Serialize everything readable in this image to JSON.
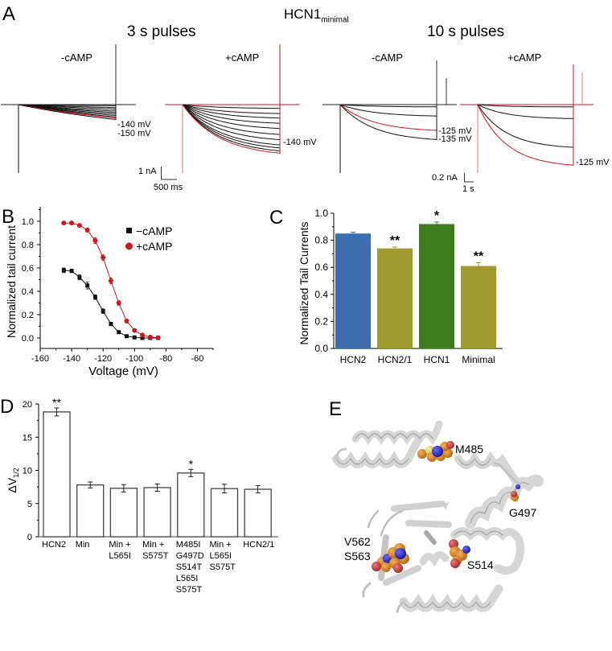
{
  "figure_title": {
    "main": "HCN1",
    "subscript": "minimal"
  },
  "panel_letters": {
    "a": "A",
    "b": "B",
    "c": "C",
    "d": "D",
    "e": "E"
  },
  "colors": {
    "trace_black": "#111111",
    "trace_red": "#d8131b",
    "trace_red_light": "#e88a8a",
    "minus_camp": "#111111",
    "plus_camp": "#d0161c",
    "hcn2_blue": "#3c6daf",
    "olive": "#a19a2c",
    "hcn1_green": "#3e7d1e",
    "protein_gray": "#d8d8d8",
    "atom_orange": "#d97f1a",
    "atom_blue": "#2424c8",
    "atom_red": "#c8393b"
  },
  "panel_a": {
    "groups": [
      {
        "title": "3 s pulses",
        "traces": [
          {
            "label": "-cAMP",
            "voltage_labels": [
              "-140 mV",
              "-150 mV"
            ],
            "highlight": "-140 mV"
          },
          {
            "label": "+cAMP",
            "voltage_labels": [
              "-140 mV"
            ],
            "highlight": "-140 mV"
          }
        ],
        "scale_bar": {
          "current": "1 nA",
          "time": "500 ms"
        }
      },
      {
        "title": "10 s pulses",
        "traces": [
          {
            "label": "-cAMP",
            "voltage_labels": [
              "-125 mV",
              "-135 mV"
            ],
            "highlight": "-125 mV"
          },
          {
            "label": "+cAMP",
            "voltage_labels": [
              "-125 mV"
            ],
            "highlight": "-125 mV"
          }
        ],
        "scale_bar": {
          "current": "0.2 nA",
          "time": "1 s"
        }
      }
    ]
  },
  "chart_data": [
    {
      "panel": "B",
      "type": "scatter",
      "title": "",
      "xlabel": "Voltage (mV)",
      "ylabel": "Normalized tail current",
      "xlim": [
        -160,
        -50
      ],
      "ylim": [
        -0.1,
        1.05
      ],
      "xticks": [
        -160,
        -140,
        -120,
        -100,
        -80,
        -60
      ],
      "xtick_labels": [
        "-160",
        "-140",
        "-120",
        "-100",
        "-80",
        "-60"
      ],
      "yticks": [
        0.0,
        0.2,
        0.4,
        0.6,
        0.8,
        1.0
      ],
      "ytick_labels": [
        "0.0",
        "0.2",
        "0.4",
        "0.6",
        "0.8",
        "1.0"
      ],
      "legend": "top-right",
      "fit": "Boltzmann",
      "x": [
        -145,
        -140,
        -135,
        -130,
        -125,
        -120,
        -115,
        -110,
        -105,
        -100,
        -95,
        -90,
        -85
      ],
      "series": [
        {
          "name": "−cAMP",
          "marker": "square",
          "color": "#111111",
          "values": [
            0.58,
            0.575,
            0.52,
            0.45,
            0.35,
            0.23,
            0.12,
            0.05,
            0.015,
            0.005,
            0.0,
            0.0,
            0.0
          ],
          "errors": [
            0.02,
            0.015,
            0.02,
            0.03,
            0.02,
            0.02,
            0.015,
            0.008,
            0.005,
            0.003,
            0.003,
            0.003,
            0.003
          ]
        },
        {
          "name": "+cAMP",
          "marker": "circle",
          "color": "#d0161c",
          "values": [
            0.985,
            0.985,
            0.965,
            0.925,
            0.835,
            0.69,
            0.49,
            0.3,
            0.145,
            0.065,
            0.025,
            0.008,
            0.003
          ],
          "errors": [
            0.01,
            0.008,
            0.01,
            0.015,
            0.025,
            0.025,
            0.025,
            0.02,
            0.015,
            0.008,
            0.005,
            0.004,
            0.003
          ]
        }
      ]
    },
    {
      "panel": "C",
      "type": "bar",
      "title": "",
      "xlabel": "",
      "ylabel": "Normalized Tail Currents",
      "ylim": [
        0.0,
        1.0
      ],
      "yticks": [
        0.0,
        0.2,
        0.4,
        0.6,
        0.8,
        1.0
      ],
      "ytick_labels": [
        "0.0",
        "0.2",
        "0.4",
        "0.6",
        "0.8",
        "1.0"
      ],
      "categories": [
        "HCN2",
        "HCN2/1",
        "HCN1",
        "Minimal"
      ],
      "values": [
        0.85,
        0.74,
        0.92,
        0.61
      ],
      "errors": [
        0.01,
        0.01,
        0.015,
        0.025
      ],
      "significance": [
        "",
        "**",
        "*",
        "**"
      ],
      "bar_colors": [
        "#3c6daf",
        "#a19a2c",
        "#3e7d1e",
        "#a19a2c"
      ]
    },
    {
      "panel": "D",
      "type": "bar",
      "title": "",
      "xlabel": "",
      "ylabel": "ΔV1/2",
      "ylabel_main": "ΔV",
      "ylabel_sub": "1/2",
      "ylim": [
        0,
        20
      ],
      "yticks": [
        0,
        5,
        10,
        15,
        20
      ],
      "ytick_labels": [
        "0",
        "5",
        "10",
        "15",
        "20"
      ],
      "categories": [
        [
          "HCN2"
        ],
        [
          "Min"
        ],
        [
          "Min +",
          "L565I"
        ],
        [
          "Min +",
          "S575T"
        ],
        [
          "M485I",
          "G497D",
          "S514T",
          "L565I",
          "S575T"
        ],
        [
          "Min +",
          "L565I",
          "S575T"
        ],
        [
          "HCN2/1"
        ]
      ],
      "values": [
        18.8,
        7.8,
        7.3,
        7.4,
        9.6,
        7.25,
        7.15
      ],
      "errors": [
        0.6,
        0.45,
        0.55,
        0.55,
        0.55,
        0.65,
        0.55
      ],
      "significance": [
        "**",
        "",
        "",
        "",
        "*",
        "",
        ""
      ]
    }
  ],
  "panel_e": {
    "residue_labels": [
      "M485",
      "G497",
      "V562",
      "S563",
      "S514"
    ]
  }
}
